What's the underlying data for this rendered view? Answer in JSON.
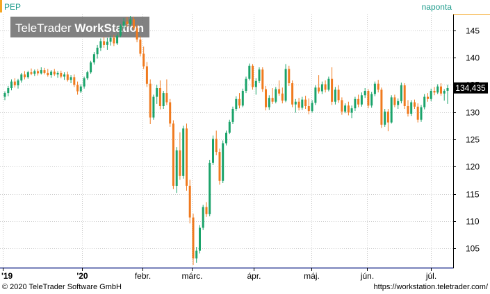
{
  "symbol": "PEP",
  "interval_label": "naponta",
  "watermark": {
    "brand_light": "TeleTrader ",
    "brand_bold": "WorkStation"
  },
  "last_price_label": "134,435",
  "footer": {
    "copyright": "© 2020 TeleTrader Software GmbH",
    "url": "https://workstation.teletrader.com/"
  },
  "colors": {
    "up": "#1aa36a",
    "down": "#f07a1e",
    "accent": "#f5a623",
    "grid": "#cccccc",
    "symbol": "#1a9a8a",
    "price_label_bg": "#000000",
    "axis_blue": "#1a2a8a"
  },
  "chart_data": {
    "type": "candlestick",
    "y_axis": {
      "range": [
        101.5,
        148.0
      ],
      "ticks": [
        105,
        110,
        115,
        120,
        125,
        130,
        135,
        140,
        145
      ],
      "side": "right"
    },
    "x_axis": {
      "labels": [
        "'19",
        "'20",
        "febr.",
        "márc.",
        "ápr.",
        "máj.",
        "jún.",
        "júl."
      ]
    },
    "grid": true,
    "last_price": 134.435,
    "candles": [
      {
        "o": 132.8,
        "h": 133.8,
        "l": 132.2,
        "c": 133.5
      },
      {
        "o": 133.5,
        "h": 134.8,
        "l": 132.9,
        "c": 134.4
      },
      {
        "o": 134.4,
        "h": 136.0,
        "l": 134.0,
        "c": 135.6
      },
      {
        "o": 135.6,
        "h": 136.2,
        "l": 134.5,
        "c": 134.9
      },
      {
        "o": 134.9,
        "h": 136.1,
        "l": 134.3,
        "c": 135.8
      },
      {
        "o": 135.8,
        "h": 137.2,
        "l": 135.4,
        "c": 136.9
      },
      {
        "o": 136.9,
        "h": 137.5,
        "l": 136.0,
        "c": 136.4
      },
      {
        "o": 136.4,
        "h": 137.6,
        "l": 136.1,
        "c": 137.3
      },
      {
        "o": 137.3,
        "h": 138.0,
        "l": 136.8,
        "c": 137.0
      },
      {
        "o": 137.0,
        "h": 137.8,
        "l": 136.6,
        "c": 137.5
      },
      {
        "o": 137.5,
        "h": 137.9,
        "l": 136.7,
        "c": 137.1
      },
      {
        "o": 137.1,
        "h": 138.2,
        "l": 136.9,
        "c": 137.7
      },
      {
        "o": 137.7,
        "h": 138.1,
        "l": 136.9,
        "c": 137.2
      },
      {
        "o": 137.2,
        "h": 137.9,
        "l": 136.5,
        "c": 136.8
      },
      {
        "o": 136.8,
        "h": 137.7,
        "l": 136.3,
        "c": 137.4
      },
      {
        "o": 137.4,
        "h": 137.9,
        "l": 136.6,
        "c": 136.9
      },
      {
        "o": 136.9,
        "h": 137.5,
        "l": 136.3,
        "c": 137.2
      },
      {
        "o": 137.2,
        "h": 137.6,
        "l": 136.2,
        "c": 136.5
      },
      {
        "o": 136.5,
        "h": 137.3,
        "l": 135.9,
        "c": 136.9
      },
      {
        "o": 136.9,
        "h": 137.4,
        "l": 135.6,
        "c": 135.9
      },
      {
        "o": 135.9,
        "h": 136.8,
        "l": 135.3,
        "c": 136.4
      },
      {
        "o": 136.4,
        "h": 136.9,
        "l": 134.6,
        "c": 135.0
      },
      {
        "o": 135.0,
        "h": 135.6,
        "l": 133.2,
        "c": 133.8
      },
      {
        "o": 133.8,
        "h": 135.1,
        "l": 133.5,
        "c": 134.7
      },
      {
        "o": 134.7,
        "h": 136.5,
        "l": 134.3,
        "c": 136.2
      },
      {
        "o": 136.2,
        "h": 137.6,
        "l": 135.9,
        "c": 137.3
      },
      {
        "o": 137.3,
        "h": 139.4,
        "l": 137.0,
        "c": 139.1
      },
      {
        "o": 139.1,
        "h": 141.0,
        "l": 138.7,
        "c": 140.6
      },
      {
        "o": 140.6,
        "h": 142.3,
        "l": 139.8,
        "c": 141.8
      },
      {
        "o": 141.8,
        "h": 143.5,
        "l": 141.2,
        "c": 143.0
      },
      {
        "o": 143.0,
        "h": 143.8,
        "l": 141.8,
        "c": 142.3
      },
      {
        "o": 142.3,
        "h": 143.6,
        "l": 141.4,
        "c": 142.9
      },
      {
        "o": 142.9,
        "h": 144.0,
        "l": 142.2,
        "c": 143.6
      },
      {
        "o": 143.6,
        "h": 144.1,
        "l": 142.1,
        "c": 142.6
      },
      {
        "o": 142.6,
        "h": 144.4,
        "l": 142.3,
        "c": 144.0
      },
      {
        "o": 144.0,
        "h": 146.1,
        "l": 143.7,
        "c": 145.8
      },
      {
        "o": 145.8,
        "h": 147.2,
        "l": 145.3,
        "c": 146.6
      },
      {
        "o": 146.6,
        "h": 147.4,
        "l": 145.6,
        "c": 146.1
      },
      {
        "o": 146.1,
        "h": 147.6,
        "l": 145.8,
        "c": 147.0
      },
      {
        "o": 147.0,
        "h": 147.5,
        "l": 145.0,
        "c": 145.4
      },
      {
        "o": 145.4,
        "h": 146.0,
        "l": 142.8,
        "c": 143.3
      },
      {
        "o": 143.3,
        "h": 143.9,
        "l": 140.2,
        "c": 140.7
      },
      {
        "o": 140.7,
        "h": 142.0,
        "l": 137.9,
        "c": 138.4
      },
      {
        "o": 138.4,
        "h": 139.2,
        "l": 134.6,
        "c": 135.2
      },
      {
        "o": 135.2,
        "h": 136.0,
        "l": 127.8,
        "c": 129.0
      },
      {
        "o": 129.0,
        "h": 133.2,
        "l": 128.6,
        "c": 132.8
      },
      {
        "o": 132.8,
        "h": 135.0,
        "l": 131.5,
        "c": 134.4
      },
      {
        "o": 134.4,
        "h": 135.8,
        "l": 130.5,
        "c": 131.1
      },
      {
        "o": 131.1,
        "h": 133.9,
        "l": 130.6,
        "c": 133.5
      },
      {
        "o": 133.5,
        "h": 136.0,
        "l": 131.3,
        "c": 131.8
      },
      {
        "o": 131.8,
        "h": 132.4,
        "l": 127.3,
        "c": 127.9
      },
      {
        "o": 127.9,
        "h": 128.5,
        "l": 115.9,
        "c": 116.5
      },
      {
        "o": 116.5,
        "h": 123.6,
        "l": 115.2,
        "c": 123.0
      },
      {
        "o": 123.0,
        "h": 126.3,
        "l": 117.6,
        "c": 118.3
      },
      {
        "o": 118.3,
        "h": 127.5,
        "l": 117.8,
        "c": 127.0
      },
      {
        "o": 127.0,
        "h": 127.9,
        "l": 115.6,
        "c": 116.5
      },
      {
        "o": 116.5,
        "h": 117.6,
        "l": 109.6,
        "c": 110.7
      },
      {
        "o": 110.7,
        "h": 111.4,
        "l": 102.0,
        "c": 103.2
      },
      {
        "o": 103.2,
        "h": 105.3,
        "l": 102.4,
        "c": 104.6
      },
      {
        "o": 104.6,
        "h": 109.3,
        "l": 104.1,
        "c": 108.8
      },
      {
        "o": 108.8,
        "h": 113.0,
        "l": 108.4,
        "c": 112.6
      },
      {
        "o": 112.6,
        "h": 113.5,
        "l": 110.8,
        "c": 111.3
      },
      {
        "o": 111.3,
        "h": 121.2,
        "l": 110.9,
        "c": 120.7
      },
      {
        "o": 120.7,
        "h": 125.7,
        "l": 120.3,
        "c": 125.1
      },
      {
        "o": 125.1,
        "h": 126.6,
        "l": 122.1,
        "c": 122.7
      },
      {
        "o": 122.7,
        "h": 123.3,
        "l": 116.7,
        "c": 117.4
      },
      {
        "o": 117.4,
        "h": 124.8,
        "l": 117.0,
        "c": 124.3
      },
      {
        "o": 124.3,
        "h": 126.6,
        "l": 123.9,
        "c": 126.2
      },
      {
        "o": 126.2,
        "h": 128.6,
        "l": 126.0,
        "c": 128.2
      },
      {
        "o": 128.2,
        "h": 131.0,
        "l": 127.8,
        "c": 130.6
      },
      {
        "o": 130.6,
        "h": 132.9,
        "l": 130.2,
        "c": 132.4
      },
      {
        "o": 132.4,
        "h": 133.5,
        "l": 130.7,
        "c": 131.2
      },
      {
        "o": 131.2,
        "h": 134.3,
        "l": 130.9,
        "c": 133.9
      },
      {
        "o": 133.9,
        "h": 136.5,
        "l": 133.5,
        "c": 136.1
      },
      {
        "o": 136.1,
        "h": 138.9,
        "l": 135.8,
        "c": 138.5
      },
      {
        "o": 138.5,
        "h": 138.8,
        "l": 134.1,
        "c": 134.6
      },
      {
        "o": 134.6,
        "h": 136.2,
        "l": 133.2,
        "c": 135.7
      },
      {
        "o": 135.7,
        "h": 138.2,
        "l": 135.3,
        "c": 137.8
      },
      {
        "o": 137.8,
        "h": 138.2,
        "l": 133.7,
        "c": 134.2
      },
      {
        "o": 134.2,
        "h": 134.8,
        "l": 130.3,
        "c": 130.9
      },
      {
        "o": 130.9,
        "h": 133.1,
        "l": 130.4,
        "c": 132.6
      },
      {
        "o": 132.6,
        "h": 134.4,
        "l": 131.5,
        "c": 131.9
      },
      {
        "o": 131.9,
        "h": 134.6,
        "l": 131.6,
        "c": 134.2
      },
      {
        "o": 134.2,
        "h": 135.8,
        "l": 133.0,
        "c": 133.4
      },
      {
        "o": 133.4,
        "h": 134.5,
        "l": 131.6,
        "c": 132.1
      },
      {
        "o": 132.1,
        "h": 138.8,
        "l": 131.8,
        "c": 137.9
      },
      {
        "o": 137.9,
        "h": 138.5,
        "l": 134.8,
        "c": 135.3
      },
      {
        "o": 135.3,
        "h": 135.8,
        "l": 130.9,
        "c": 131.4
      },
      {
        "o": 131.4,
        "h": 132.4,
        "l": 129.9,
        "c": 131.9
      },
      {
        "o": 131.9,
        "h": 132.6,
        "l": 130.3,
        "c": 130.8
      },
      {
        "o": 130.8,
        "h": 132.8,
        "l": 130.4,
        "c": 132.3
      },
      {
        "o": 132.3,
        "h": 133.0,
        "l": 130.6,
        "c": 131.1
      },
      {
        "o": 131.1,
        "h": 132.5,
        "l": 129.6,
        "c": 130.2
      },
      {
        "o": 130.2,
        "h": 132.2,
        "l": 129.9,
        "c": 131.7
      },
      {
        "o": 131.7,
        "h": 134.9,
        "l": 131.3,
        "c": 134.5
      },
      {
        "o": 134.5,
        "h": 136.8,
        "l": 133.4,
        "c": 133.8
      },
      {
        "o": 133.8,
        "h": 135.6,
        "l": 133.3,
        "c": 135.1
      },
      {
        "o": 135.1,
        "h": 135.8,
        "l": 133.6,
        "c": 134.1
      },
      {
        "o": 134.1,
        "h": 136.5,
        "l": 133.8,
        "c": 136.1
      },
      {
        "o": 136.1,
        "h": 138.2,
        "l": 131.3,
        "c": 131.9
      },
      {
        "o": 131.9,
        "h": 134.6,
        "l": 131.4,
        "c": 134.1
      },
      {
        "o": 134.1,
        "h": 134.9,
        "l": 131.7,
        "c": 132.2
      },
      {
        "o": 132.2,
        "h": 132.7,
        "l": 129.5,
        "c": 130.1
      },
      {
        "o": 130.1,
        "h": 131.6,
        "l": 129.8,
        "c": 131.2
      },
      {
        "o": 131.2,
        "h": 131.9,
        "l": 129.4,
        "c": 129.9
      },
      {
        "o": 129.9,
        "h": 131.2,
        "l": 128.9,
        "c": 130.7
      },
      {
        "o": 130.7,
        "h": 132.8,
        "l": 130.2,
        "c": 132.4
      },
      {
        "o": 132.4,
        "h": 133.2,
        "l": 130.9,
        "c": 131.4
      },
      {
        "o": 131.4,
        "h": 133.6,
        "l": 131.0,
        "c": 133.1
      },
      {
        "o": 133.1,
        "h": 134.4,
        "l": 132.6,
        "c": 133.9
      },
      {
        "o": 133.9,
        "h": 134.2,
        "l": 130.7,
        "c": 131.2
      },
      {
        "o": 131.2,
        "h": 133.7,
        "l": 130.8,
        "c": 133.3
      },
      {
        "o": 133.3,
        "h": 135.6,
        "l": 132.9,
        "c": 135.2
      },
      {
        "o": 135.2,
        "h": 135.9,
        "l": 133.6,
        "c": 134.1
      },
      {
        "o": 134.1,
        "h": 134.5,
        "l": 127.1,
        "c": 127.7
      },
      {
        "o": 127.7,
        "h": 130.6,
        "l": 127.3,
        "c": 130.1
      },
      {
        "o": 130.1,
        "h": 130.6,
        "l": 126.5,
        "c": 128.1
      },
      {
        "o": 128.1,
        "h": 133.1,
        "l": 127.9,
        "c": 132.7
      },
      {
        "o": 132.7,
        "h": 133.2,
        "l": 130.9,
        "c": 131.3
      },
      {
        "o": 131.3,
        "h": 132.5,
        "l": 130.6,
        "c": 132.0
      },
      {
        "o": 132.0,
        "h": 135.4,
        "l": 131.6,
        "c": 134.9
      },
      {
        "o": 134.9,
        "h": 135.3,
        "l": 130.6,
        "c": 131.1
      },
      {
        "o": 131.1,
        "h": 132.2,
        "l": 129.2,
        "c": 129.7
      },
      {
        "o": 129.7,
        "h": 132.2,
        "l": 129.3,
        "c": 131.8
      },
      {
        "o": 131.8,
        "h": 132.3,
        "l": 130.6,
        "c": 131.0
      },
      {
        "o": 131.0,
        "h": 131.6,
        "l": 128.1,
        "c": 128.6
      },
      {
        "o": 128.6,
        "h": 131.3,
        "l": 128.2,
        "c": 130.9
      },
      {
        "o": 130.9,
        "h": 133.3,
        "l": 130.5,
        "c": 132.8
      },
      {
        "o": 132.8,
        "h": 133.5,
        "l": 131.9,
        "c": 132.4
      },
      {
        "o": 132.4,
        "h": 134.3,
        "l": 132.0,
        "c": 133.9
      },
      {
        "o": 133.9,
        "h": 134.6,
        "l": 133.1,
        "c": 133.6
      },
      {
        "o": 133.6,
        "h": 135.1,
        "l": 133.3,
        "c": 134.7
      },
      {
        "o": 134.7,
        "h": 135.3,
        "l": 133.0,
        "c": 133.4
      },
      {
        "o": 133.4,
        "h": 134.2,
        "l": 132.1,
        "c": 133.9
      },
      {
        "o": 133.9,
        "h": 135.0,
        "l": 131.5,
        "c": 134.4
      }
    ]
  }
}
